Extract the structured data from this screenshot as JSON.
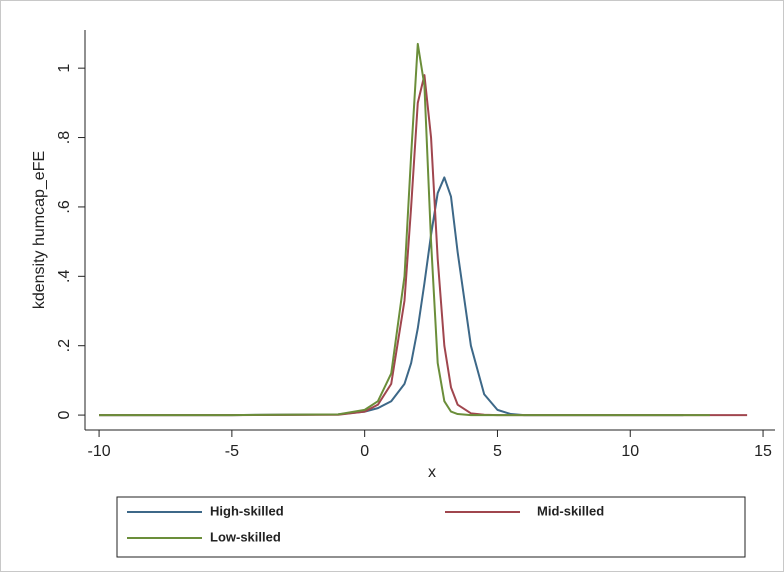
{
  "chart_data": {
    "type": "line",
    "y_label": "kdensity humcap_eFE",
    "x_label": "x",
    "x": [
      -10,
      -5,
      -1,
      0,
      0.5,
      1,
      1.5,
      1.75,
      2,
      2.25,
      2.5,
      2.75,
      3,
      3.25,
      3.5,
      4,
      4.5,
      5,
      5.5,
      6,
      8,
      10,
      12,
      13,
      14.4
    ],
    "series": [
      {
        "name": "High-skilled",
        "color": "#3d6888",
        "values": [
          0,
          0,
          0.002,
          0.01,
          0.02,
          0.04,
          0.09,
          0.15,
          0.25,
          0.38,
          0.52,
          0.64,
          0.685,
          0.63,
          0.47,
          0.2,
          0.06,
          0.015,
          0.003,
          0,
          0,
          0,
          0,
          null,
          null
        ]
      },
      {
        "name": "Mid-skilled",
        "color": "#a0464e",
        "values": [
          0,
          0,
          0.001,
          0.01,
          0.03,
          0.09,
          0.33,
          0.6,
          0.9,
          0.98,
          0.8,
          0.45,
          0.2,
          0.08,
          0.03,
          0.005,
          0.001,
          0,
          0,
          0,
          0,
          0,
          0,
          0,
          0
        ]
      },
      {
        "name": "Low-skilled",
        "color": "#6b8e3a",
        "values": [
          0,
          0,
          0.002,
          0.015,
          0.04,
          0.12,
          0.4,
          0.75,
          1.07,
          0.95,
          0.5,
          0.15,
          0.04,
          0.01,
          0.003,
          0,
          0,
          0,
          0,
          0,
          0,
          0,
          0,
          0,
          null
        ]
      }
    ],
    "xlim": [
      -10.53,
      15.45
    ],
    "ylim": [
      -0.043,
      1.11
    ],
    "xticks": [
      -10,
      -5,
      0,
      5,
      10,
      15
    ],
    "yticks": [
      0,
      {
        "value": 0.2,
        "label": ".2"
      },
      {
        "value": 0.4,
        "label": ".4"
      },
      {
        "value": 0.6,
        "label": ".6"
      },
      {
        "value": 0.8,
        "label": ".8"
      },
      1
    ],
    "grid": false,
    "legend": "bottom"
  }
}
